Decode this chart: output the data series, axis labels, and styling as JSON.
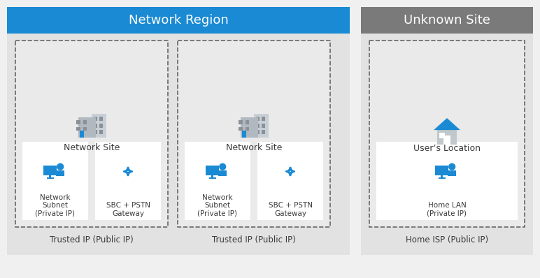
{
  "bg_color": "#f0f0f0",
  "network_region_color": "#1a8ad4",
  "unknown_site_color": "#7a7a7a",
  "header_text_color": "#ffffff",
  "panel_bg": "#e2e2e2",
  "inner_bg": "#eaeaea",
  "white": "#ffffff",
  "text_color": "#3a3a3a",
  "blue": "#1a8ad4",
  "dashed_color": "#666666",
  "network_region_title": "Network Region",
  "unknown_site_title": "Unknown Site",
  "site1_label": "Network Site",
  "site2_label": "Network Site",
  "site3_label": "User’s Location",
  "subnet1_label": "Network\nSubnet\n(Private IP)",
  "gateway1_label": "SBC + PSTN\nGateway",
  "subnet2_label": "Network\nSubnet\n(Private IP)",
  "gateway2_label": "SBC + PSTN\nGateway",
  "home_lan_label": "Home LAN\n(Private IP)",
  "trusted_ip1": "Trusted IP (Public IP)",
  "trusted_ip2": "Trusted IP (Public IP)",
  "home_isp": "Home ISP (Public IP)"
}
